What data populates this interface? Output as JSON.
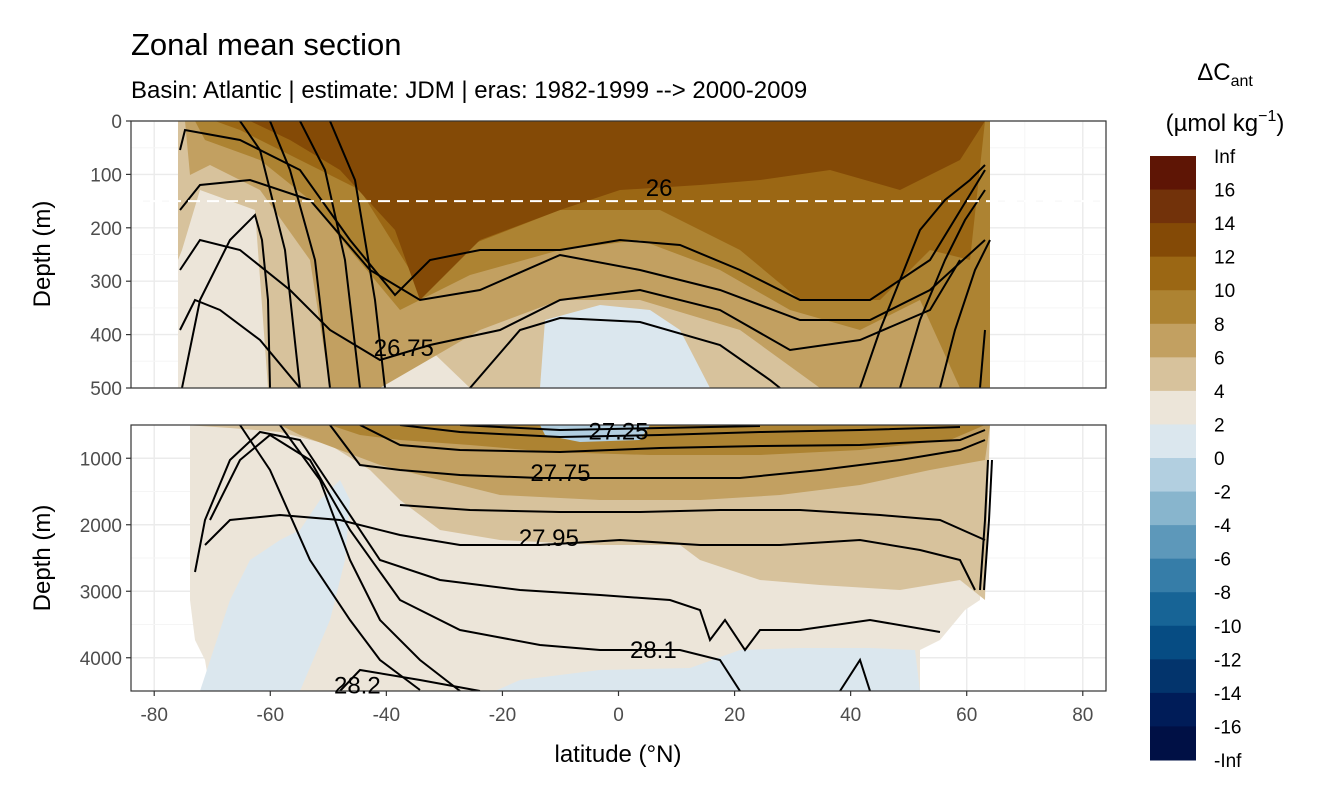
{
  "chart_data": {
    "type": "heatmap",
    "title": "Zonal mean section",
    "subtitle": "Basin: Atlantic | estimate: JDM  | eras: 1982-1999 --> 2000-2009",
    "xlabel": "latitude (°N)",
    "ylabel": "Depth (m)",
    "x_ticks": [
      "-80",
      "-60",
      "-40",
      "-20",
      "0",
      "20",
      "40",
      "60",
      "80"
    ],
    "xlim": [
      -84,
      84
    ],
    "panels": [
      {
        "name": "upper",
        "ylim": [
          0,
          500
        ],
        "y_ticks": [
          "0",
          "100",
          "200",
          "300",
          "400",
          "500"
        ]
      },
      {
        "name": "lower",
        "ylim": [
          500,
          4500
        ],
        "y_ticks": [
          "1000",
          "2000",
          "3000",
          "4000"
        ]
      }
    ],
    "reference_line_depth": 150,
    "legend": {
      "title": "ΔC",
      "title_sub": "ant",
      "unit_open": "(µmol kg",
      "unit_sup": "−1",
      "unit_close": ")",
      "labels": [
        "Inf",
        "16",
        "14",
        "12",
        "10",
        "8",
        "6",
        "4",
        "2",
        "0",
        "-2",
        "-4",
        "-6",
        "-8",
        "-10",
        "-12",
        "-14",
        "-16",
        "-Inf"
      ],
      "colors": [
        "#5e1505",
        "#72320a",
        "#844a06",
        "#9b6714",
        "#ad8332",
        "#c2a061",
        "#d7c29c",
        "#ece5d9",
        "#dbe7ee",
        "#b2cfe0",
        "#88b5cd",
        "#5d98ba",
        "#367da8",
        "#176496",
        "#064c83",
        "#03346c",
        "#001c58",
        "#001045"
      ]
    },
    "contour_labels": [
      {
        "text": "26",
        "lat": 7,
        "depth": 125,
        "panel": 0
      },
      {
        "text": "26.75",
        "lat": -37,
        "depth": 425,
        "panel": 0
      },
      {
        "text": "27.25",
        "lat": 0,
        "depth": 600,
        "panel": 1
      },
      {
        "text": "27.75",
        "lat": -10,
        "depth": 1220,
        "panel": 1
      },
      {
        "text": "27.95",
        "lat": -12,
        "depth": 2200,
        "panel": 1
      },
      {
        "text": "28.1",
        "lat": 6,
        "depth": 3880,
        "panel": 1
      },
      {
        "text": "28.2",
        "lat": -45,
        "depth": 4420,
        "panel": 1
      }
    ]
  }
}
